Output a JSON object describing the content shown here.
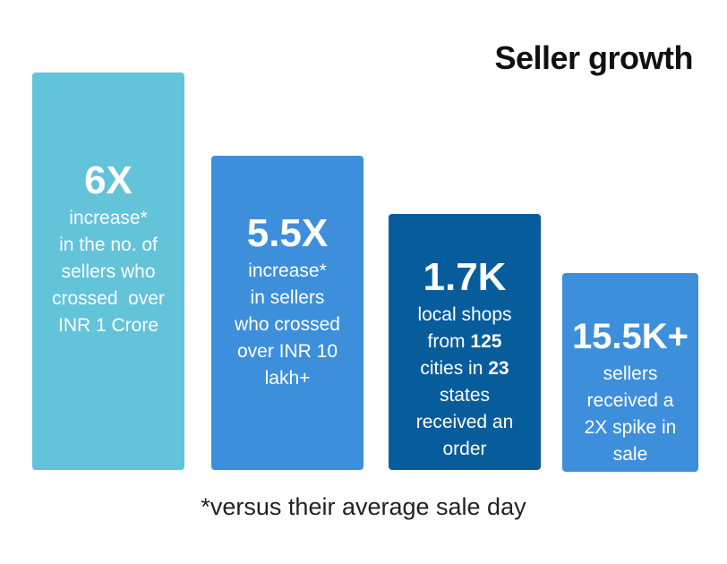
{
  "title": "Seller growth",
  "footnote": "*versus their average sale day",
  "colors": {
    "card_1": "#63c3d9",
    "card_2": "#3d8fdc",
    "card_3": "#075d9c",
    "card_4": "#3d8fdc"
  },
  "chart_data": {
    "type": "bar",
    "title": "Seller growth",
    "bars": [
      {
        "value_label": "6X",
        "description_lines": [
          "increase*",
          "in the no. of",
          "sellers who",
          "crossed  over",
          "INR 1 Crore"
        ]
      },
      {
        "value_label": "5.5X",
        "description_lines": [
          "increase*",
          "in sellers",
          "who crossed",
          "over INR 10",
          "lakh+"
        ]
      },
      {
        "value_label": "1.7K",
        "description_lines": [
          "local shops",
          "from 125",
          "cities in 23",
          "states",
          "received an",
          "order"
        ]
      },
      {
        "value_label": "15.5K+",
        "description_lines": [
          "sellers",
          "received a",
          "2X spike in",
          "sale"
        ]
      }
    ]
  }
}
